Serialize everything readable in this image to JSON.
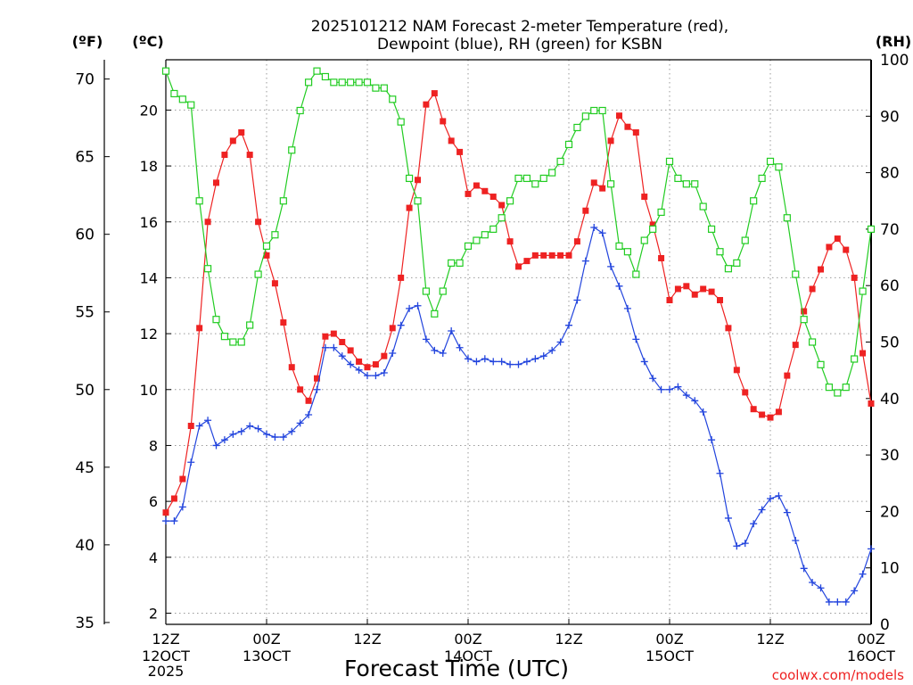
{
  "chart_data": {
    "type": "line",
    "title_lines": [
      "2025101212 NAM Forecast 2-meter Temperature (red),",
      "Dewpoint (blue), RH (green) for KSBN"
    ],
    "units": {
      "left_f": "(ºF)",
      "left_c": "(ºC)",
      "right": "(RH)"
    },
    "xlabel": "Forecast Time (UTC)",
    "credit": "coolwx.com/models",
    "x_ticks": [
      {
        "label": "12Z",
        "sub": [
          "12OCT",
          "2025"
        ]
      },
      {
        "label": "00Z",
        "sub": [
          "13OCT"
        ]
      },
      {
        "label": "12Z",
        "sub": []
      },
      {
        "label": "00Z",
        "sub": [
          "14OCT"
        ]
      },
      {
        "label": "12Z",
        "sub": []
      },
      {
        "label": "00Z",
        "sub": [
          "15OCT"
        ]
      },
      {
        "label": "12Z",
        "sub": []
      },
      {
        "label": "00Z",
        "sub": [
          "16OCT"
        ]
      }
    ],
    "y_f_ticks": [
      "35",
      "40",
      "45",
      "50",
      "55",
      "60",
      "65",
      "70"
    ],
    "y_c_ticks": [
      "2",
      "4",
      "6",
      "8",
      "10",
      "12",
      "14",
      "16",
      "18",
      "20"
    ],
    "y_rh_ticks": [
      "0",
      "10",
      "20",
      "30",
      "40",
      "50",
      "60",
      "70",
      "80",
      "90",
      "100"
    ],
    "xlim_hours": [
      0,
      84
    ],
    "ylim_c": [
      1.6,
      21.8
    ],
    "ylim_rh": [
      0,
      100
    ],
    "grid": true,
    "series": [
      {
        "name": "Temperature",
        "color": "#ee2222",
        "marker": "filled-square",
        "axis": "celsius",
        "values": [
          5.6,
          6.1,
          6.8,
          8.7,
          12.2,
          16.0,
          17.4,
          18.4,
          18.9,
          19.2,
          18.4,
          16.0,
          14.8,
          13.8,
          12.4,
          10.8,
          10.0,
          9.6,
          10.4,
          11.9,
          12.0,
          11.7,
          11.4,
          11.0,
          10.8,
          10.9,
          11.2,
          12.2,
          14.0,
          16.5,
          17.5,
          20.2,
          20.6,
          19.6,
          18.9,
          18.5,
          17.0,
          17.3,
          17.1,
          16.9,
          16.6,
          15.3,
          14.4,
          14.6,
          14.8,
          14.8,
          14.8,
          14.8,
          14.8,
          15.3,
          16.4,
          17.4,
          17.2,
          18.9,
          19.8,
          19.4,
          19.2,
          16.9,
          15.9,
          14.7,
          13.2,
          13.6,
          13.7,
          13.4,
          13.6,
          13.5,
          13.2,
          12.2,
          10.7,
          9.9,
          9.3,
          9.1,
          9.0,
          9.2,
          10.5,
          11.6,
          12.8,
          13.6,
          14.3,
          15.1,
          15.4,
          15.0,
          14.0,
          11.3,
          9.5
        ]
      },
      {
        "name": "Dewpoint",
        "color": "#2244dd",
        "marker": "plus",
        "axis": "celsius",
        "values": [
          5.3,
          5.3,
          5.8,
          7.4,
          8.7,
          8.9,
          8.0,
          8.2,
          8.4,
          8.5,
          8.7,
          8.6,
          8.4,
          8.3,
          8.3,
          8.5,
          8.8,
          9.1,
          10.0,
          11.5,
          11.5,
          11.2,
          10.9,
          10.7,
          10.5,
          10.5,
          10.6,
          11.3,
          12.3,
          12.9,
          13.0,
          11.8,
          11.4,
          11.3,
          12.1,
          11.5,
          11.1,
          11.0,
          11.1,
          11.0,
          11.0,
          10.9,
          10.9,
          11.0,
          11.1,
          11.2,
          11.4,
          11.7,
          12.3,
          13.2,
          14.6,
          15.8,
          15.6,
          14.4,
          13.7,
          12.9,
          11.8,
          11.0,
          10.4,
          10.0,
          10.0,
          10.1,
          9.8,
          9.6,
          9.2,
          8.2,
          7.0,
          5.4,
          4.4,
          4.5,
          5.2,
          5.7,
          6.1,
          6.2,
          5.6,
          4.6,
          3.6,
          3.1,
          2.9,
          2.4,
          2.4,
          2.4,
          2.8,
          3.4,
          4.3
        ]
      },
      {
        "name": "RH",
        "color": "#22cc22",
        "marker": "open-square",
        "axis": "rh",
        "values": [
          98,
          94,
          93,
          92,
          75,
          63,
          54,
          51,
          50,
          50,
          53,
          62,
          67,
          69,
          75,
          84,
          91,
          96,
          98,
          97,
          96,
          96,
          96,
          96,
          96,
          95,
          95,
          93,
          89,
          79,
          75,
          59,
          55,
          59,
          64,
          64,
          67,
          68,
          69,
          70,
          72,
          75,
          79,
          79,
          78,
          79,
          80,
          82,
          85,
          88,
          90,
          91,
          91,
          78,
          67,
          66,
          62,
          68,
          70,
          73,
          82,
          79,
          78,
          78,
          74,
          70,
          66,
          63,
          64,
          68,
          75,
          79,
          82,
          81,
          72,
          62,
          54,
          50,
          46,
          42,
          41,
          42,
          47,
          59,
          70
        ]
      }
    ]
  }
}
